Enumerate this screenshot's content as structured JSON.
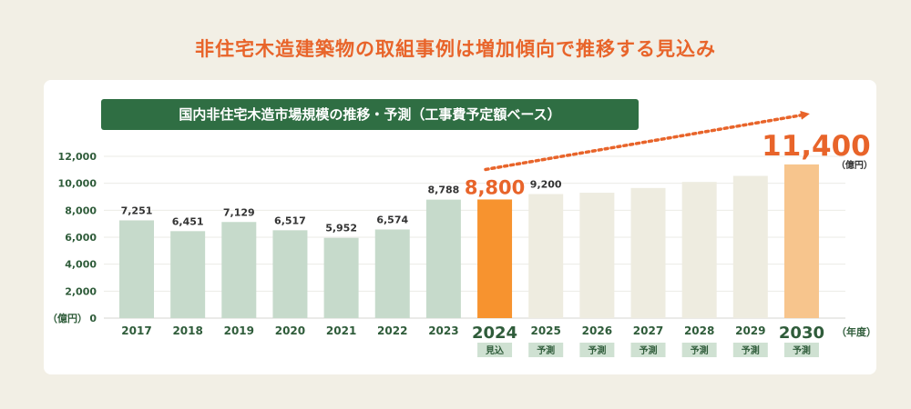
{
  "headline": "非住宅木造建築物の取組事例は増加傾向で推移する見込み",
  "chart_data": {
    "type": "bar",
    "title": "国内非住宅木造市場規模の推移・予測（工事費予定額ベース）",
    "ylabel": "（億円）",
    "xlabel": "（年度）",
    "ylim": [
      0,
      12000
    ],
    "yticks": [
      0,
      2000,
      4000,
      6000,
      8000,
      10000,
      12000
    ],
    "ytick_labels": [
      "0",
      "2,000",
      "4,000",
      "6,000",
      "8,000",
      "10,000",
      "12,000"
    ],
    "categories": [
      "2017",
      "2018",
      "2019",
      "2020",
      "2021",
      "2022",
      "2023",
      "2024",
      "2025",
      "2026",
      "2027",
      "2028",
      "2029",
      "2030"
    ],
    "values": [
      7251,
      6451,
      7129,
      6517,
      5952,
      6574,
      8788,
      8800,
      9200,
      9300,
      9650,
      10100,
      10550,
      11400
    ],
    "value_labels": [
      "7,251",
      "6,451",
      "7,129",
      "6,517",
      "5,952",
      "6,574",
      "8,788",
      "8,800",
      "9,200",
      "",
      "",
      "",
      "",
      "11,400"
    ],
    "kinds": [
      "actual",
      "actual",
      "actual",
      "actual",
      "actual",
      "actual",
      "actual",
      "estimate",
      "forecast",
      "forecast",
      "forecast",
      "forecast",
      "forecast",
      "forecast-final"
    ],
    "sublabels": [
      "",
      "",
      "",
      "",
      "",
      "",
      "",
      "見込",
      "予測",
      "予測",
      "予測",
      "予測",
      "予測",
      "予測"
    ],
    "highlight_unit": "（億円）",
    "colors": {
      "actual": "#c6dacb",
      "estimate": "#f7932f",
      "forecast": "#eeece0",
      "forecast_final": "#f7c58d",
      "accent": "#e8642a",
      "axis_text": "#2f5c3a",
      "sublabel_bg": "#cfe1d2",
      "sublabel_text": "#2f5c3a"
    }
  }
}
